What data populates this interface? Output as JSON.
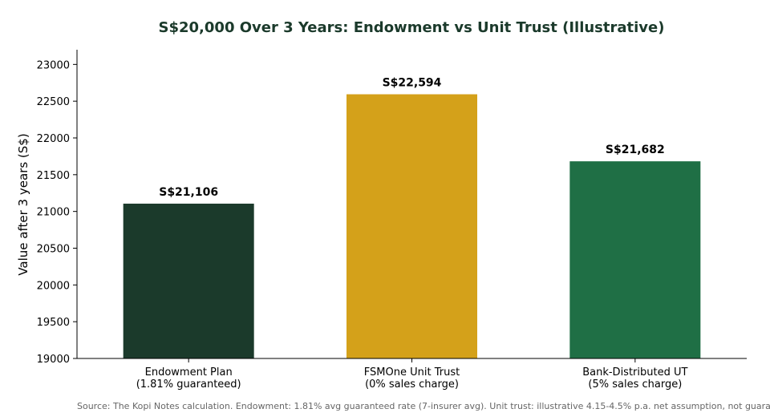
{
  "colors": {
    "title": "#1b3a2b",
    "source": "#666666",
    "axis": "#000000"
  },
  "chart_data": {
    "type": "bar",
    "title": "S$20,000 Over 3 Years: Endowment vs Unit Trust (Illustrative)",
    "xlabel": "",
    "ylabel": "Value after 3 years (S$)",
    "ylim": [
      19000,
      23200
    ],
    "yticks": [
      19000,
      19500,
      20000,
      20500,
      21000,
      21500,
      22000,
      22500,
      23000
    ],
    "grid": false,
    "categories": [
      [
        "Endowment Plan",
        "(1.81% guaranteed)"
      ],
      [
        "FSMOne Unit Trust",
        "(0% sales charge)"
      ],
      [
        "Bank-Distributed UT",
        "(5% sales charge)"
      ]
    ],
    "values": [
      21106,
      22594,
      21682
    ],
    "value_labels": [
      "S$21,106",
      "S$22,594",
      "S$21,682"
    ],
    "bar_colors": [
      "#1b3a2b",
      "#d4a11a",
      "#1f6f45"
    ]
  },
  "source_note": "Source: The Kopi Notes calculation. Endowment: 1.81% avg guaranteed rate (7-insurer avg). Unit trust: illustrative 4.15-4.5% p.a. net assumption, not guaranteed."
}
